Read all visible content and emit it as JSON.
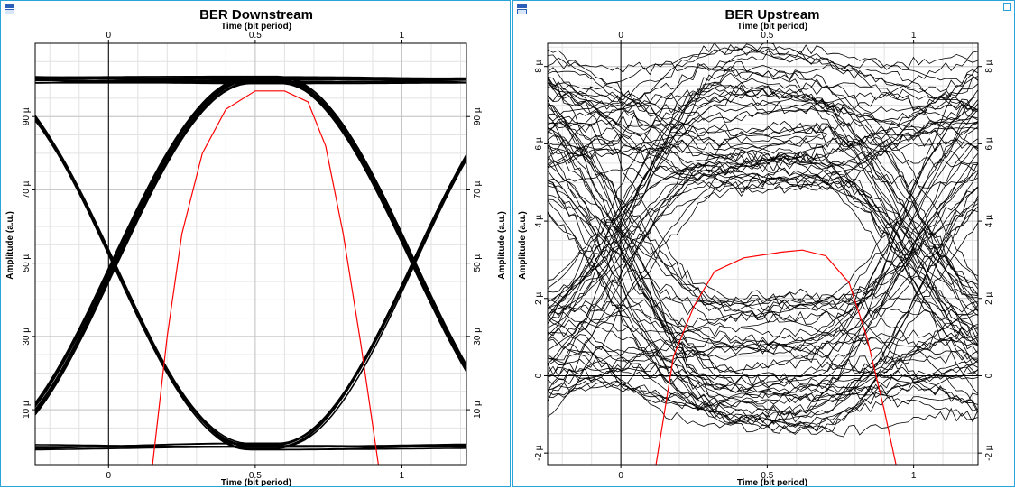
{
  "panels": [
    {
      "id": "left",
      "title": "BER Downstream",
      "top_axis_label": "Time (bit period)",
      "bottom_axis_label": "Time (bit period)",
      "left_axis_label": "Amplitude (a.u.)",
      "right_axis_label": "Amplitude (a.u.)",
      "x_ticks": [
        "0",
        "0.5",
        "1"
      ],
      "y_ticks": [
        "10 µ",
        "30 µ",
        "50 µ",
        "70 µ",
        "90 µ"
      ]
    },
    {
      "id": "right",
      "title": "BER Upstream",
      "top_axis_label": "Time (bit period)",
      "bottom_axis_label": "Time (bit period)",
      "left_axis_label": "Amplitude (a.u.)",
      "right_axis_label": "",
      "x_ticks": [
        "0",
        "0.5",
        "1"
      ],
      "y_ticks": [
        "-2 µ",
        "0",
        "2 µ",
        "4 µ",
        "6 µ",
        "8 µ"
      ]
    }
  ],
  "chart_data": [
    {
      "type": "line",
      "title": "BER Downstream",
      "xlabel": "Time (bit period)",
      "ylabel": "Amplitude (a.u.)",
      "xlim": [
        -0.25,
        1.22
      ],
      "ylim": [
        -5,
        110
      ],
      "x_ticks": [
        0,
        0.5,
        1
      ],
      "y_ticks": [
        10,
        30,
        50,
        70,
        90
      ],
      "y_unit": "µ",
      "grid": true,
      "eye": {
        "high": 100,
        "low": 0,
        "crossings": [
          0.02,
          1.04
        ],
        "trace_count": 34,
        "noise": 1.0
      },
      "ber_curve": {
        "color": "#ff0000",
        "x": [
          0.15,
          0.2,
          0.25,
          0.32,
          0.4,
          0.5,
          0.6,
          0.68,
          0.74,
          0.8,
          0.86,
          0.92
        ],
        "y": [
          -5,
          30,
          58,
          80,
          92,
          97,
          97,
          94,
          82,
          58,
          28,
          -5
        ]
      }
    },
    {
      "type": "line",
      "title": "BER Upstream",
      "xlabel": "Time (bit period)",
      "ylabel": "Amplitude (a.u.)",
      "xlim": [
        -0.25,
        1.22
      ],
      "ylim": [
        -2.3,
        8.6
      ],
      "x_ticks": [
        0,
        0.5,
        1
      ],
      "y_ticks": [
        -2,
        0,
        2,
        4,
        6,
        8
      ],
      "y_unit": "µ",
      "grid": true,
      "eye": {
        "high": 6.6,
        "low": 0.4,
        "crossings": [
          0.0,
          1.0
        ],
        "trace_count": 95,
        "noise": 1.1
      },
      "ber_curve": {
        "color": "#ff0000",
        "x": [
          0.12,
          0.18,
          0.25,
          0.32,
          0.42,
          0.55,
          0.62,
          0.7,
          0.78,
          0.84,
          0.9,
          0.94
        ],
        "y": [
          -2.3,
          0.5,
          1.8,
          2.7,
          3.05,
          3.2,
          3.25,
          3.1,
          2.4,
          1.0,
          -0.9,
          -2.3
        ]
      }
    }
  ]
}
